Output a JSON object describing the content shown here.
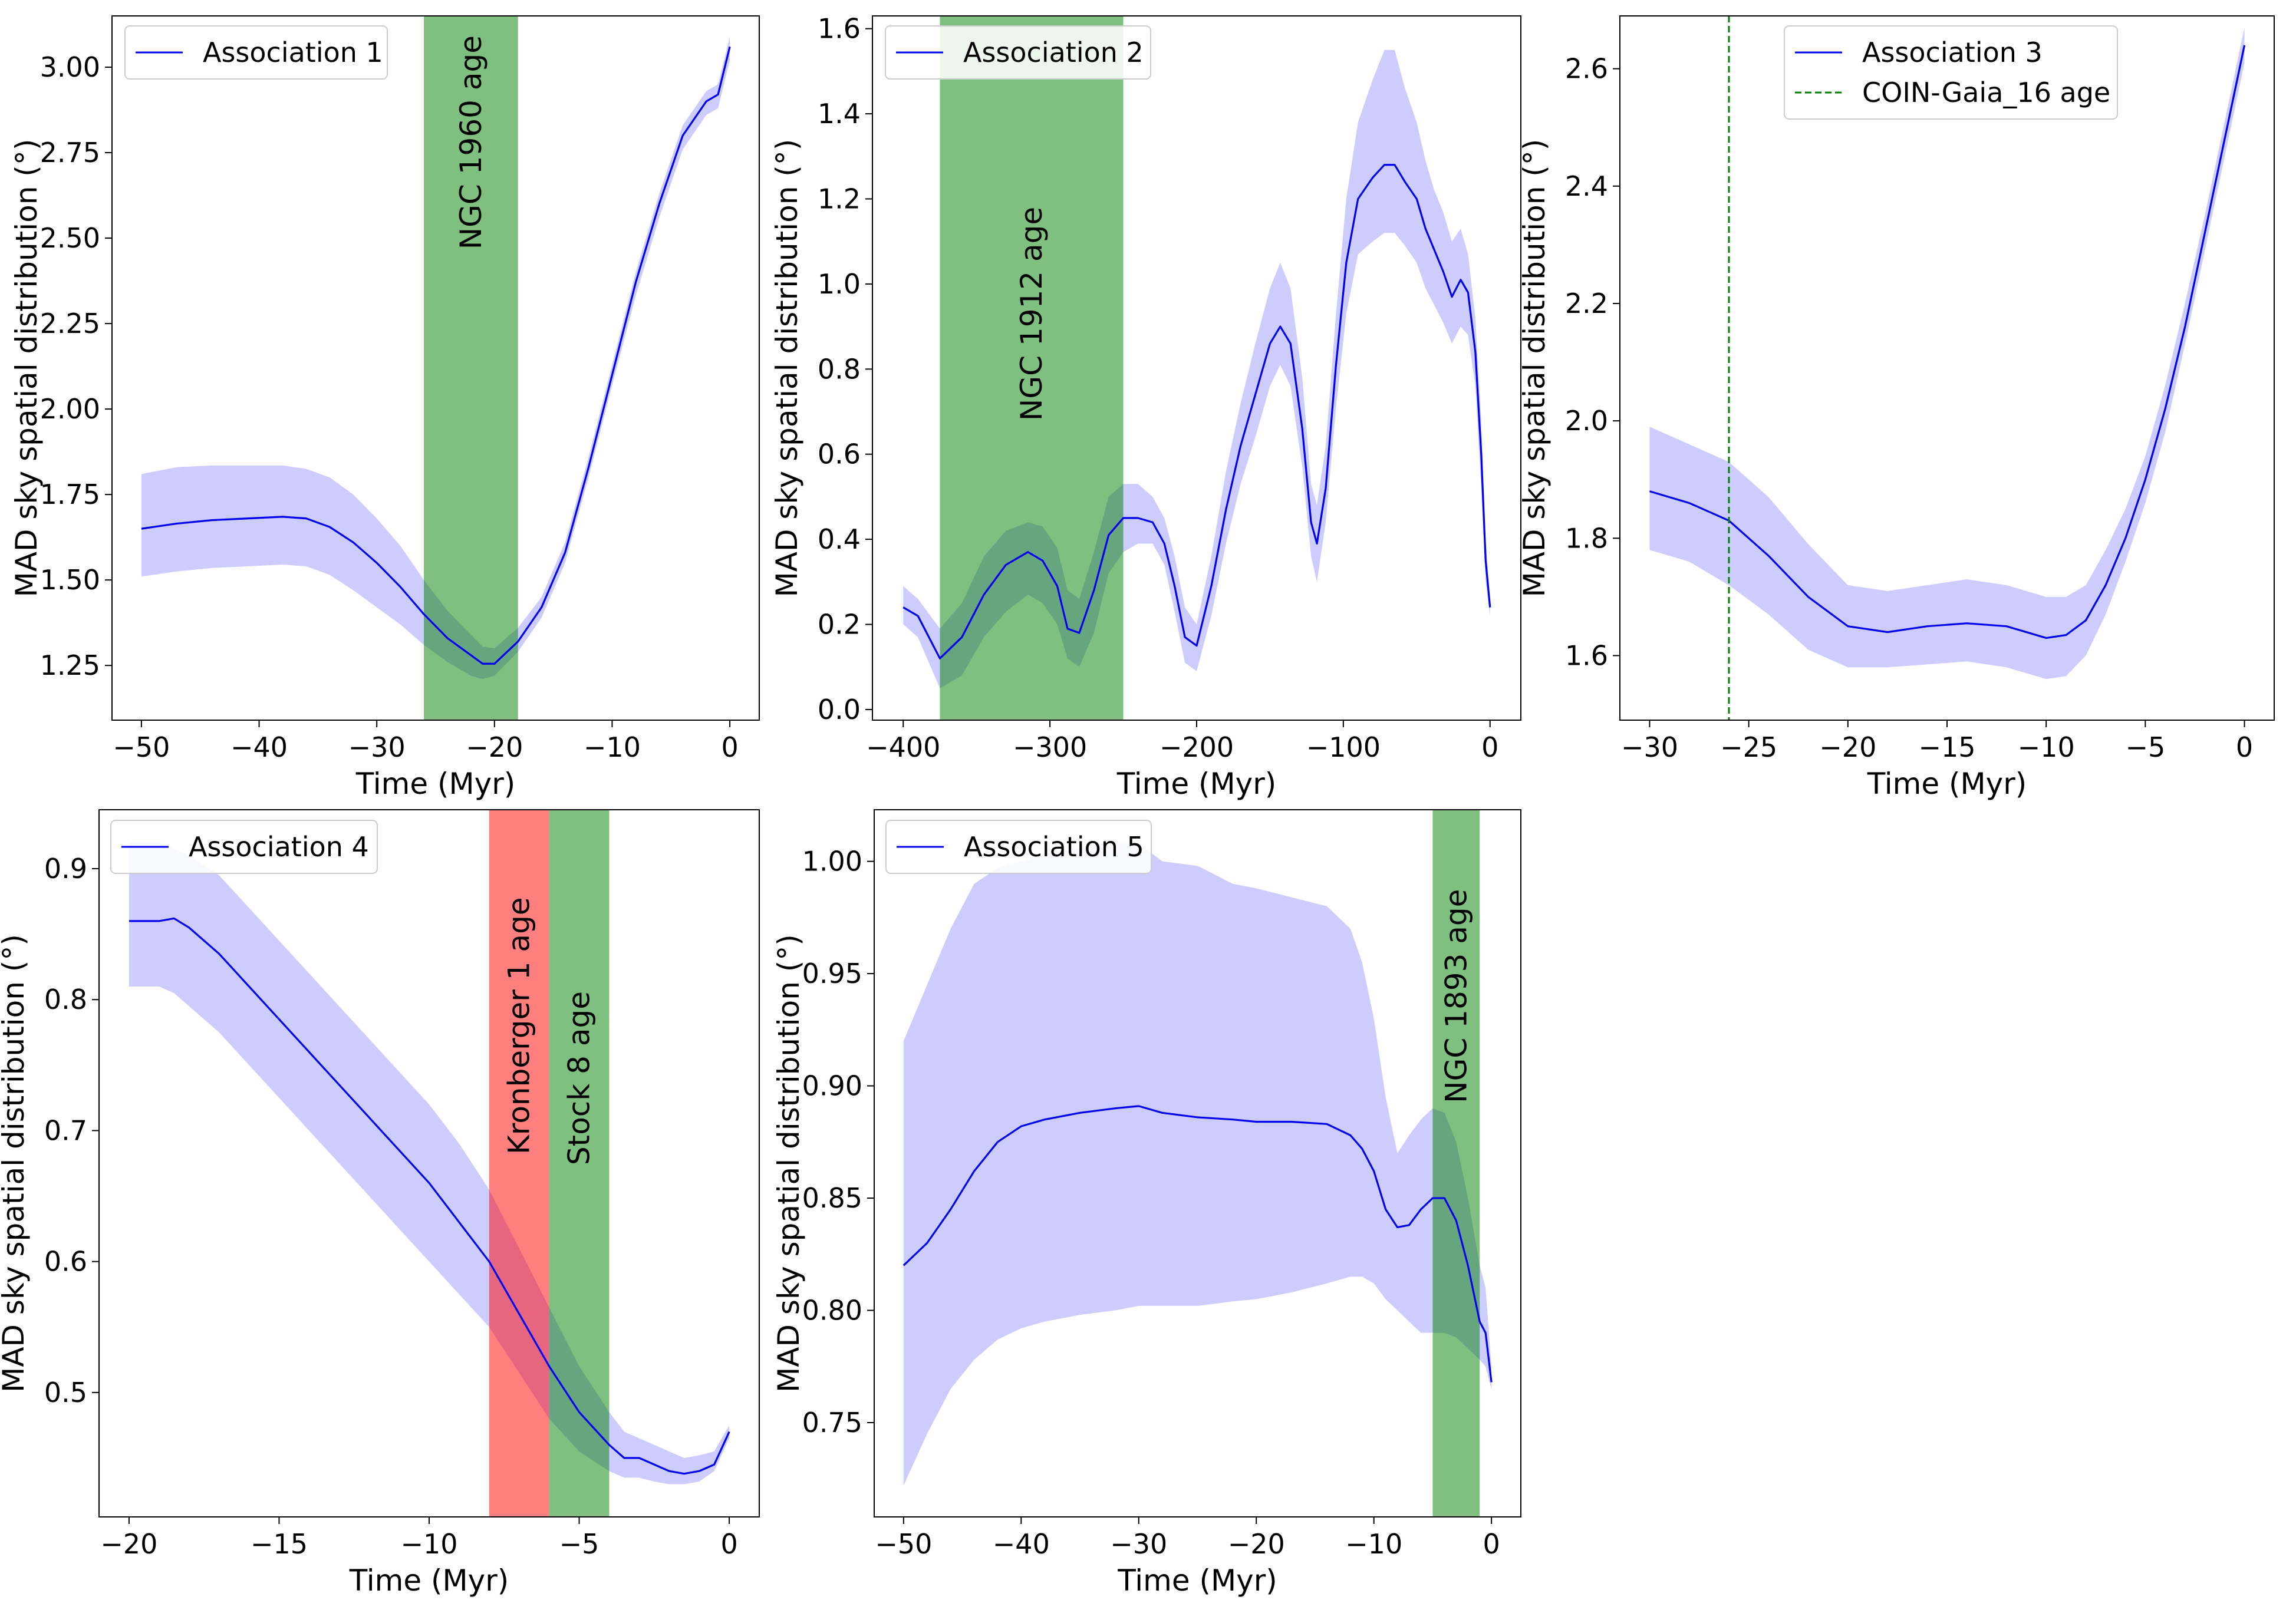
{
  "chart_data": [
    {
      "type": "line",
      "legend": {
        "label": "Association 1",
        "location": "top-left"
      },
      "xlabel": "Time (Myr)",
      "ylabel": "MAD sky spatial distribution (°)",
      "xlim": [
        -52.5,
        2.5
      ],
      "ylim": [
        1.09,
        3.15
      ],
      "xticks": [
        -50,
        -40,
        -30,
        -20,
        -10,
        0
      ],
      "xtick_labels": [
        "−50",
        "−40",
        "−30",
        "−20",
        "−10",
        "0"
      ],
      "yticks": [
        1.25,
        1.5,
        1.75,
        2.0,
        2.25,
        2.5,
        2.75,
        3.0
      ],
      "ytick_labels": [
        "1.25",
        "1.50",
        "1.75",
        "2.00",
        "2.25",
        "2.50",
        "2.75",
        "3.00"
      ],
      "series": [
        {
          "name": "Association 1",
          "color": "#0000ee",
          "x": [
            -50,
            -47,
            -44,
            -41,
            -38,
            -36,
            -34,
            -32,
            -30,
            -28,
            -26,
            -24,
            -22,
            -21,
            -20,
            -18,
            -16,
            -14,
            -12,
            -10,
            -8,
            -6,
            -4,
            -2,
            -1,
            0
          ],
          "values": [
            1.65,
            1.665,
            1.675,
            1.68,
            1.685,
            1.68,
            1.655,
            1.61,
            1.55,
            1.48,
            1.4,
            1.33,
            1.28,
            1.255,
            1.255,
            1.32,
            1.42,
            1.58,
            1.83,
            2.1,
            2.37,
            2.6,
            2.8,
            2.9,
            2.92,
            3.06
          ],
          "band_low": [
            1.51,
            1.525,
            1.535,
            1.54,
            1.545,
            1.54,
            1.515,
            1.47,
            1.42,
            1.37,
            1.31,
            1.26,
            1.22,
            1.21,
            1.22,
            1.29,
            1.39,
            1.55,
            1.8,
            2.07,
            2.33,
            2.56,
            2.76,
            2.86,
            2.88,
            3.02
          ],
          "band_high": [
            1.81,
            1.83,
            1.835,
            1.835,
            1.835,
            1.825,
            1.8,
            1.75,
            1.68,
            1.6,
            1.5,
            1.41,
            1.34,
            1.305,
            1.3,
            1.36,
            1.45,
            1.61,
            1.86,
            2.13,
            2.4,
            2.63,
            2.83,
            2.93,
            2.95,
            3.09
          ],
          "band_color": "#9999ff"
        }
      ],
      "spans": [
        {
          "x0": -26,
          "x1": -18,
          "color": "#008000",
          "label": "NGC 1960 age",
          "label_y": 2.78
        }
      ]
    },
    {
      "type": "line",
      "legend": {
        "label": "Association 2",
        "location": "top-left"
      },
      "xlabel": "Time (Myr)",
      "ylabel": "MAD sky spatial distribution (°)",
      "xlim": [
        -421,
        21
      ],
      "ylim": [
        -0.025,
        1.63
      ],
      "xticks": [
        -400,
        -300,
        -200,
        -100,
        0
      ],
      "xtick_labels": [
        "−400",
        "−300",
        "−200",
        "−100",
        "0"
      ],
      "yticks": [
        0.0,
        0.2,
        0.4,
        0.6,
        0.8,
        1.0,
        1.2,
        1.4,
        1.6
      ],
      "ytick_labels": [
        "0.0",
        "0.2",
        "0.4",
        "0.6",
        "0.8",
        "1.0",
        "1.2",
        "1.4",
        "1.6"
      ],
      "series": [
        {
          "name": "Association 2",
          "color": "#0000ee",
          "x": [
            -400,
            -390,
            -375,
            -360,
            -345,
            -330,
            -315,
            -305,
            -295,
            -288,
            -280,
            -270,
            -260,
            -250,
            -240,
            -230,
            -222,
            -215,
            -208,
            -200,
            -190,
            -180,
            -170,
            -160,
            -150,
            -143,
            -136,
            -128,
            -122,
            -118,
            -112,
            -105,
            -98,
            -90,
            -80,
            -72,
            -65,
            -58,
            -50,
            -44,
            -38,
            -32,
            -26,
            -20,
            -15,
            -10,
            -6,
            -3,
            0
          ],
          "values": [
            0.24,
            0.22,
            0.12,
            0.17,
            0.27,
            0.34,
            0.37,
            0.35,
            0.29,
            0.19,
            0.18,
            0.28,
            0.41,
            0.45,
            0.45,
            0.44,
            0.39,
            0.29,
            0.17,
            0.15,
            0.29,
            0.47,
            0.62,
            0.74,
            0.86,
            0.9,
            0.86,
            0.66,
            0.44,
            0.39,
            0.52,
            0.81,
            1.05,
            1.2,
            1.25,
            1.28,
            1.28,
            1.24,
            1.2,
            1.13,
            1.08,
            1.03,
            0.97,
            1.01,
            0.98,
            0.84,
            0.6,
            0.35,
            0.24
          ],
          "band_low": [
            0.2,
            0.17,
            0.05,
            0.08,
            0.17,
            0.23,
            0.27,
            0.25,
            0.2,
            0.12,
            0.1,
            0.18,
            0.32,
            0.37,
            0.39,
            0.39,
            0.34,
            0.23,
            0.11,
            0.09,
            0.22,
            0.39,
            0.53,
            0.64,
            0.76,
            0.81,
            0.76,
            0.57,
            0.36,
            0.3,
            0.44,
            0.71,
            0.93,
            1.07,
            1.1,
            1.12,
            1.12,
            1.09,
            1.05,
            0.99,
            0.95,
            0.91,
            0.86,
            0.9,
            0.88,
            0.76,
            0.52,
            0.3,
            0.22
          ],
          "band_high": [
            0.29,
            0.26,
            0.19,
            0.25,
            0.36,
            0.42,
            0.44,
            0.43,
            0.38,
            0.28,
            0.26,
            0.37,
            0.5,
            0.53,
            0.53,
            0.5,
            0.45,
            0.36,
            0.24,
            0.2,
            0.36,
            0.56,
            0.72,
            0.86,
            0.99,
            1.05,
            0.99,
            0.78,
            0.53,
            0.48,
            0.62,
            0.93,
            1.2,
            1.38,
            1.48,
            1.55,
            1.55,
            1.46,
            1.38,
            1.29,
            1.22,
            1.17,
            1.1,
            1.13,
            1.07,
            0.92,
            0.68,
            0.4,
            0.26
          ],
          "band_color": "#9999ff"
        }
      ],
      "spans": [
        {
          "x0": -375,
          "x1": -250,
          "color": "#008000",
          "label": "NGC 1912 age",
          "label_y": 0.93
        }
      ]
    },
    {
      "type": "line",
      "legend": {
        "label": "Association 3",
        "location": "top-center"
      },
      "xlabel": "Time (Myr)",
      "ylabel": "MAD sky spatial distribution (°)",
      "xlim": [
        -31.5,
        1.5
      ],
      "ylim": [
        1.49,
        2.69
      ],
      "xticks": [
        -30,
        -25,
        -20,
        -15,
        -10,
        -5,
        0
      ],
      "xtick_labels": [
        "−30",
        "−25",
        "−20",
        "−15",
        "−10",
        "−5",
        "0"
      ],
      "yticks": [
        1.6,
        1.8,
        2.0,
        2.2,
        2.4,
        2.6
      ],
      "ytick_labels": [
        "1.6",
        "1.8",
        "2.0",
        "2.2",
        "2.4",
        "2.6"
      ],
      "series": [
        {
          "name": "Association 3",
          "color": "#0000ee",
          "x": [
            -30,
            -28,
            -26,
            -24,
            -22,
            -20,
            -18,
            -16,
            -14,
            -12,
            -10,
            -9,
            -8,
            -7,
            -6,
            -5,
            -4,
            -3,
            -2,
            -1,
            0
          ],
          "values": [
            1.88,
            1.86,
            1.83,
            1.77,
            1.7,
            1.65,
            1.64,
            1.65,
            1.655,
            1.65,
            1.63,
            1.635,
            1.66,
            1.72,
            1.8,
            1.9,
            2.02,
            2.16,
            2.32,
            2.48,
            2.64
          ],
          "band_low": [
            1.78,
            1.76,
            1.72,
            1.67,
            1.61,
            1.58,
            1.58,
            1.585,
            1.59,
            1.58,
            1.56,
            1.565,
            1.6,
            1.67,
            1.76,
            1.86,
            1.98,
            2.13,
            2.29,
            2.45,
            2.61
          ],
          "band_high": [
            1.99,
            1.96,
            1.93,
            1.87,
            1.79,
            1.72,
            1.71,
            1.72,
            1.73,
            1.72,
            1.7,
            1.7,
            1.72,
            1.78,
            1.85,
            1.94,
            2.06,
            2.2,
            2.35,
            2.51,
            2.67
          ],
          "band_color": "#9999ff"
        },
        {
          "name": "COIN-Gaia_16 age",
          "type": "vline",
          "x": -26,
          "color": "#008000",
          "linestyle": "dashed"
        }
      ]
    },
    {
      "type": "line",
      "legend": {
        "label": "Association 4",
        "location": "top-left"
      },
      "xlabel": "Time (Myr)",
      "ylabel": "MAD sky spatial distribution (°)",
      "xlim": [
        -21.0,
        1.0
      ],
      "ylim": [
        0.405,
        0.945
      ],
      "xticks": [
        -20,
        -15,
        -10,
        -5,
        0
      ],
      "xtick_labels": [
        "−20",
        "−15",
        "−10",
        "−5",
        "0"
      ],
      "yticks": [
        0.5,
        0.6,
        0.7,
        0.8,
        0.9
      ],
      "ytick_labels": [
        "0.5",
        "0.6",
        "0.7",
        "0.8",
        "0.9"
      ],
      "series": [
        {
          "name": "Association 4",
          "color": "#0000ee",
          "x": [
            -20,
            -19,
            -18.5,
            -18,
            -17,
            -16,
            -15,
            -14,
            -13,
            -12,
            -11,
            -10,
            -9,
            -8,
            -7,
            -6,
            -5,
            -4,
            -3.5,
            -3,
            -2.5,
            -2,
            -1.5,
            -1,
            -0.5,
            0
          ],
          "values": [
            0.86,
            0.86,
            0.862,
            0.855,
            0.835,
            0.81,
            0.785,
            0.76,
            0.735,
            0.71,
            0.685,
            0.66,
            0.63,
            0.6,
            0.56,
            0.52,
            0.485,
            0.46,
            0.45,
            0.45,
            0.445,
            0.44,
            0.438,
            0.44,
            0.445,
            0.47
          ],
          "band_low": [
            0.81,
            0.81,
            0.805,
            0.795,
            0.775,
            0.75,
            0.725,
            0.7,
            0.675,
            0.65,
            0.625,
            0.6,
            0.575,
            0.55,
            0.515,
            0.48,
            0.455,
            0.44,
            0.435,
            0.435,
            0.432,
            0.43,
            0.43,
            0.432,
            0.44,
            0.465
          ],
          "band_high": [
            0.92,
            0.92,
            0.915,
            0.91,
            0.895,
            0.87,
            0.845,
            0.82,
            0.795,
            0.77,
            0.745,
            0.72,
            0.69,
            0.655,
            0.61,
            0.565,
            0.52,
            0.485,
            0.47,
            0.465,
            0.46,
            0.455,
            0.45,
            0.452,
            0.455,
            0.475
          ],
          "band_color": "#9999ff"
        }
      ],
      "spans": [
        {
          "x0": -8,
          "x1": -6,
          "color": "#ff0000",
          "label": "Kronberger 1 age",
          "label_y": 0.78
        },
        {
          "x0": -6,
          "x1": -4,
          "color": "#008000",
          "label": "Stock 8 age",
          "label_y": 0.74
        }
      ]
    },
    {
      "type": "line",
      "legend": {
        "label": "Association 5",
        "location": "top-left"
      },
      "xlabel": "Time (Myr)",
      "ylabel": "MAD sky spatial distribution (°)",
      "xlim": [
        -52.5,
        2.5
      ],
      "ylim": [
        0.708,
        1.023
      ],
      "xticks": [
        -50,
        -40,
        -30,
        -20,
        -10,
        0
      ],
      "xtick_labels": [
        "−50",
        "−40",
        "−30",
        "−20",
        "−10",
        "0"
      ],
      "yticks": [
        0.75,
        0.8,
        0.85,
        0.9,
        0.95,
        1.0
      ],
      "ytick_labels": [
        "0.75",
        "0.80",
        "0.85",
        "0.90",
        "0.95",
        "1.00"
      ],
      "series": [
        {
          "name": "Association 5",
          "color": "#0000ee",
          "x": [
            -50,
            -48,
            -46,
            -44,
            -42,
            -40,
            -38,
            -35,
            -32,
            -30,
            -28,
            -25,
            -22,
            -20,
            -17,
            -14,
            -12,
            -11,
            -10,
            -9,
            -8,
            -7,
            -6,
            -5,
            -4,
            -3,
            -2,
            -1,
            -0.5,
            0
          ],
          "values": [
            0.82,
            0.83,
            0.845,
            0.862,
            0.875,
            0.882,
            0.885,
            0.888,
            0.89,
            0.891,
            0.888,
            0.886,
            0.885,
            0.884,
            0.884,
            0.883,
            0.878,
            0.872,
            0.862,
            0.845,
            0.837,
            0.838,
            0.845,
            0.85,
            0.85,
            0.84,
            0.82,
            0.795,
            0.79,
            0.768
          ],
          "band_low": [
            0.722,
            0.745,
            0.765,
            0.778,
            0.787,
            0.792,
            0.795,
            0.798,
            0.8,
            0.802,
            0.802,
            0.802,
            0.804,
            0.805,
            0.808,
            0.812,
            0.815,
            0.815,
            0.812,
            0.805,
            0.8,
            0.795,
            0.79,
            0.79,
            0.79,
            0.788,
            0.783,
            0.778,
            0.775,
            0.765
          ],
          "band_high": [
            0.92,
            0.945,
            0.97,
            0.99,
            0.997,
            1.0,
            1.003,
            1.006,
            1.008,
            1.008,
            1.0,
            0.998,
            0.99,
            0.988,
            0.984,
            0.98,
            0.97,
            0.955,
            0.93,
            0.895,
            0.87,
            0.878,
            0.885,
            0.89,
            0.888,
            0.875,
            0.85,
            0.82,
            0.81,
            0.775
          ],
          "band_color": "#9999ff"
        }
      ],
      "spans": [
        {
          "x0": -5,
          "x1": -1,
          "color": "#008000",
          "label": "NGC 1893 age",
          "label_y": 0.94
        }
      ]
    }
  ]
}
